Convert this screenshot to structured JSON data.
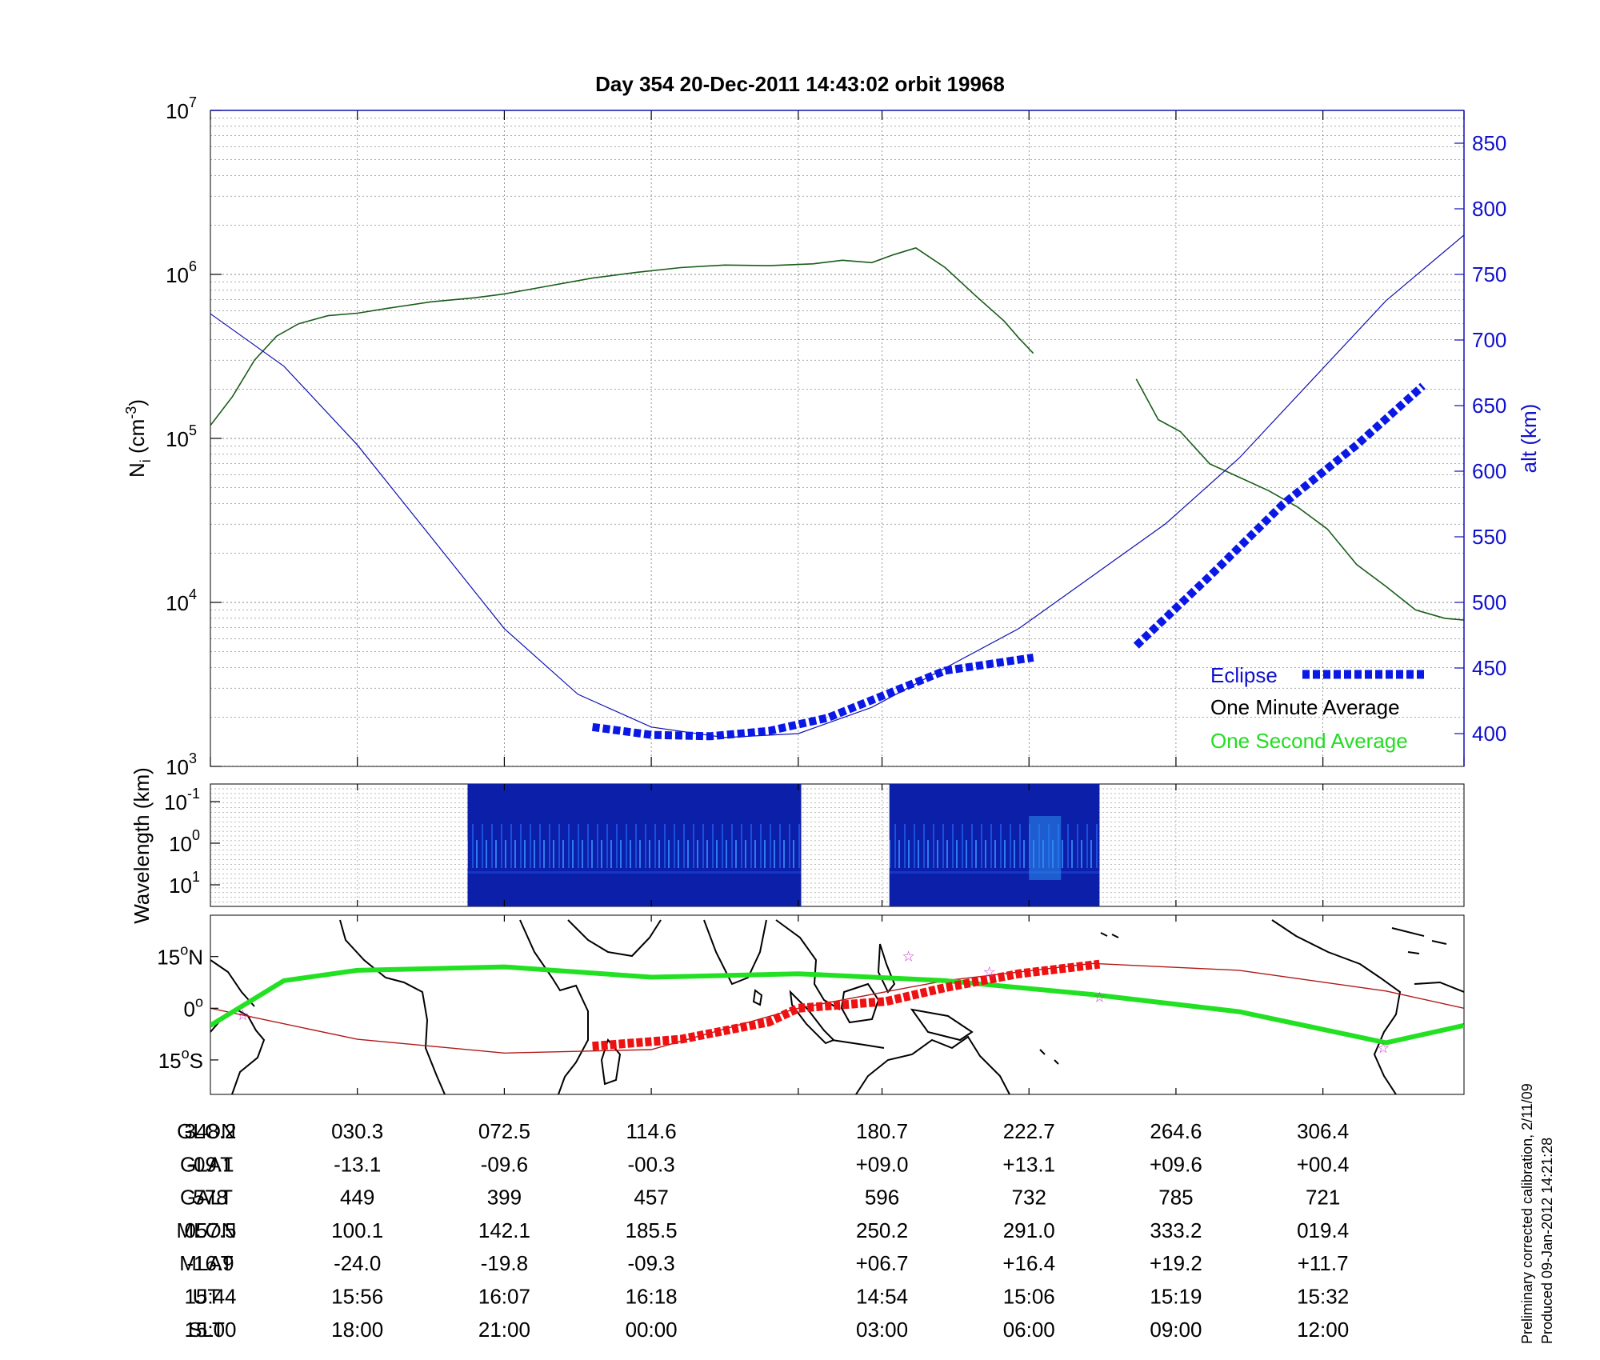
{
  "title": "Day 354  20-Dec-2011 14:43:02   orbit 19968",
  "footer": {
    "line1": "Preliminary corrected calibration, 2/11/09",
    "line2": "Produced 09-Jan-2012 14:21:28"
  },
  "colors": {
    "density": "#1a5c1a",
    "altitude": "#1010b0",
    "eclipse": "#0a18e6",
    "ground_track": "#b01818",
    "geo_eclipse": "#ee1111",
    "magnetic_equator": "#22e022",
    "stars": "#cc33cc",
    "legend_eclipse": "#1010cc",
    "legend_minute": "#000000",
    "legend_second": "#22dd22"
  },
  "chart_data": [
    {
      "type": "line",
      "name": "density-altitude",
      "ylabel": "N_i (cm^-3)",
      "ylabel_main": "N",
      "ylabel_sub": "i",
      "ylabel_unit": " (cm",
      "ylabel_sup": "-3",
      "ylabel_close": ")",
      "ylabel_right": "alt (km)",
      "yscale": "log",
      "ylim": [
        1000,
        10000000
      ],
      "y_ticks": [
        {
          "base": "10",
          "exp": "3",
          "value": 1000
        },
        {
          "base": "10",
          "exp": "4",
          "value": 10000
        },
        {
          "base": "10",
          "exp": "5",
          "value": 100000
        },
        {
          "base": "10",
          "exp": "6",
          "value": 1000000
        },
        {
          "base": "10",
          "exp": "7",
          "value": 10000000
        }
      ],
      "y2lim": [
        375,
        875
      ],
      "y2_ticks": [
        "400",
        "450",
        "500",
        "550",
        "600",
        "650",
        "700",
        "750",
        "800",
        "850"
      ],
      "xlim": [
        0,
        8.53
      ],
      "grid": true,
      "legend_position": "bottom-right",
      "legend": [
        {
          "label": "Eclipse",
          "key": "legend_eclipse"
        },
        {
          "label": "One Minute Average",
          "key": "legend_minute"
        },
        {
          "label": "One Second Average",
          "key": "legend_second"
        }
      ],
      "series": [
        {
          "name": "One Minute Average",
          "segments": [
            [
              [
                0.0,
                120000
              ],
              [
                0.15,
                180000
              ],
              [
                0.3,
                300000
              ],
              [
                0.45,
                420000
              ],
              [
                0.6,
                500000
              ],
              [
                0.8,
                560000
              ],
              [
                1.0,
                580000
              ],
              [
                1.2,
                620000
              ],
              [
                1.5,
                680000
              ],
              [
                1.8,
                720000
              ],
              [
                2.0,
                760000
              ],
              [
                2.3,
                850000
              ],
              [
                2.6,
                950000
              ],
              [
                2.9,
                1030000
              ],
              [
                3.2,
                1100000
              ],
              [
                3.5,
                1140000
              ],
              [
                3.8,
                1130000
              ],
              [
                4.1,
                1160000
              ],
              [
                4.3,
                1220000
              ],
              [
                4.5,
                1180000
              ],
              [
                4.65,
                1320000
              ],
              [
                4.8,
                1450000
              ],
              [
                5.0,
                1100000
              ],
              [
                5.2,
                750000
              ],
              [
                5.4,
                520000
              ],
              [
                5.5,
                410000
              ],
              [
                5.6,
                330000
              ]
            ],
            [
              [
                6.3,
                230000
              ],
              [
                6.45,
                130000
              ],
              [
                6.6,
                110000
              ],
              [
                6.8,
                70000
              ],
              [
                7.0,
                58000
              ],
              [
                7.2,
                48000
              ],
              [
                7.4,
                38000
              ],
              [
                7.6,
                28000
              ],
              [
                7.8,
                17000
              ],
              [
                8.0,
                12500
              ],
              [
                8.2,
                9000
              ],
              [
                8.4,
                8000
              ],
              [
                8.53,
                7800
              ]
            ]
          ]
        },
        {
          "name": "alt (km)",
          "axis": "right",
          "points": [
            [
              0.0,
              720
            ],
            [
              0.5,
              680
            ],
            [
              1.0,
              620
            ],
            [
              1.5,
              550
            ],
            [
              2.0,
              480
            ],
            [
              2.5,
              430
            ],
            [
              3.0,
              405
            ],
            [
              3.5,
              397
            ],
            [
              4.0,
              400
            ],
            [
              4.5,
              420
            ],
            [
              5.0,
              450
            ],
            [
              5.5,
              480
            ],
            [
              6.0,
              520
            ],
            [
              6.5,
              560
            ],
            [
              7.0,
              610
            ],
            [
              7.5,
              670
            ],
            [
              8.0,
              730
            ],
            [
              8.53,
              780
            ]
          ]
        },
        {
          "name": "Eclipse",
          "segments": [
            [
              [
                2.6,
                405
              ],
              [
                3.0,
                399
              ],
              [
                3.4,
                398
              ],
              [
                3.8,
                402
              ],
              [
                4.2,
                412
              ],
              [
                4.6,
                430
              ],
              [
                5.0,
                448
              ],
              [
                5.6,
                458
              ]
            ],
            [
              [
                6.3,
                467
              ],
              [
                6.8,
                520
              ],
              [
                7.3,
                575
              ],
              [
                7.8,
                620
              ],
              [
                8.25,
                665
              ]
            ]
          ]
        }
      ]
    },
    {
      "type": "heatmap",
      "name": "wavelength-spectrogram",
      "ylabel": "Wavelength (km)",
      "yscale": "log",
      "y_ticks": [
        {
          "base": "10",
          "exp": "-1"
        },
        {
          "base": "10",
          "exp": "0"
        },
        {
          "base": "10",
          "exp": "1"
        }
      ],
      "data_blocks": [
        {
          "x_start": 1.75,
          "x_end": 4.02
        },
        {
          "x_start": 4.62,
          "x_end": 6.05
        }
      ]
    },
    {
      "type": "map",
      "name": "geographic-track",
      "y_ticks": [
        {
          "deg": "15",
          "hemi": "N",
          "lat": 15
        },
        {
          "deg": "0",
          "hemi": "",
          "lat": 0
        },
        {
          "deg": "15",
          "hemi": "S",
          "lat": -15
        }
      ],
      "ylim": [
        -25,
        27
      ],
      "ground_track": [
        [
          0,
          0
        ],
        [
          1,
          -9
        ],
        [
          2,
          -13
        ],
        [
          3,
          -12
        ],
        [
          4,
          0
        ],
        [
          5,
          8
        ],
        [
          6,
          13
        ],
        [
          7,
          11
        ],
        [
          8,
          5
        ],
        [
          8.53,
          0
        ]
      ],
      "magnetic_equator": [
        [
          0,
          -5
        ],
        [
          0.5,
          8
        ],
        [
          1,
          11
        ],
        [
          2,
          12
        ],
        [
          3,
          9
        ],
        [
          4,
          10
        ],
        [
          5,
          8
        ],
        [
          6,
          4
        ],
        [
          7,
          -1
        ],
        [
          8,
          -10
        ],
        [
          8.53,
          -5
        ]
      ],
      "eclipse_track": [
        [
          2.6,
          -11
        ],
        [
          3.2,
          -9
        ],
        [
          3.8,
          -4
        ],
        [
          4.0,
          0
        ],
        [
          4.6,
          2
        ],
        [
          5.0,
          6
        ],
        [
          5.5,
          10
        ],
        [
          6.05,
          12.8
        ]
      ],
      "stars": [
        [
          0.22,
          -2
        ],
        [
          4.75,
          15
        ],
        [
          5.3,
          10.5
        ],
        [
          6.05,
          3.2
        ],
        [
          7.98,
          -11.5
        ]
      ]
    }
  ],
  "table": {
    "x_positions": [
      0,
      1,
      2,
      3,
      4.57,
      5.57,
      6.57,
      7.57
    ],
    "rows": [
      {
        "label": "GLON",
        "values": [
          "348.2",
          "030.3",
          "072.5",
          "114.6",
          "180.7",
          "222.7",
          "264.6",
          "306.4"
        ]
      },
      {
        "label": "GLAT",
        "values": [
          "-09.1",
          "-13.1",
          "-09.6",
          "-00.3",
          "+09.0",
          "+13.1",
          "+09.6",
          "+00.4"
        ]
      },
      {
        "label": "GALT",
        "values": [
          "578",
          "449",
          "399",
          "457",
          "596",
          "732",
          "785",
          "721"
        ]
      },
      {
        "label": "MLON",
        "values": [
          "057.5",
          "100.1",
          "142.1",
          "185.5",
          "250.2",
          "291.0",
          "333.2",
          "019.4"
        ]
      },
      {
        "label": "MLAT",
        "values": [
          "-16.9",
          "-24.0",
          "-19.8",
          "-09.3",
          "+06.7",
          "+16.4",
          "+19.2",
          "+11.7"
        ]
      },
      {
        "label": "UT",
        "values": [
          "15:44",
          "15:56",
          "16:07",
          "16:18",
          "14:54",
          "15:06",
          "15:19",
          "15:32"
        ]
      },
      {
        "label": "SLT",
        "values": [
          "15:00",
          "18:00",
          "21:00",
          "00:00",
          "03:00",
          "06:00",
          "09:00",
          "12:00"
        ]
      }
    ]
  }
}
